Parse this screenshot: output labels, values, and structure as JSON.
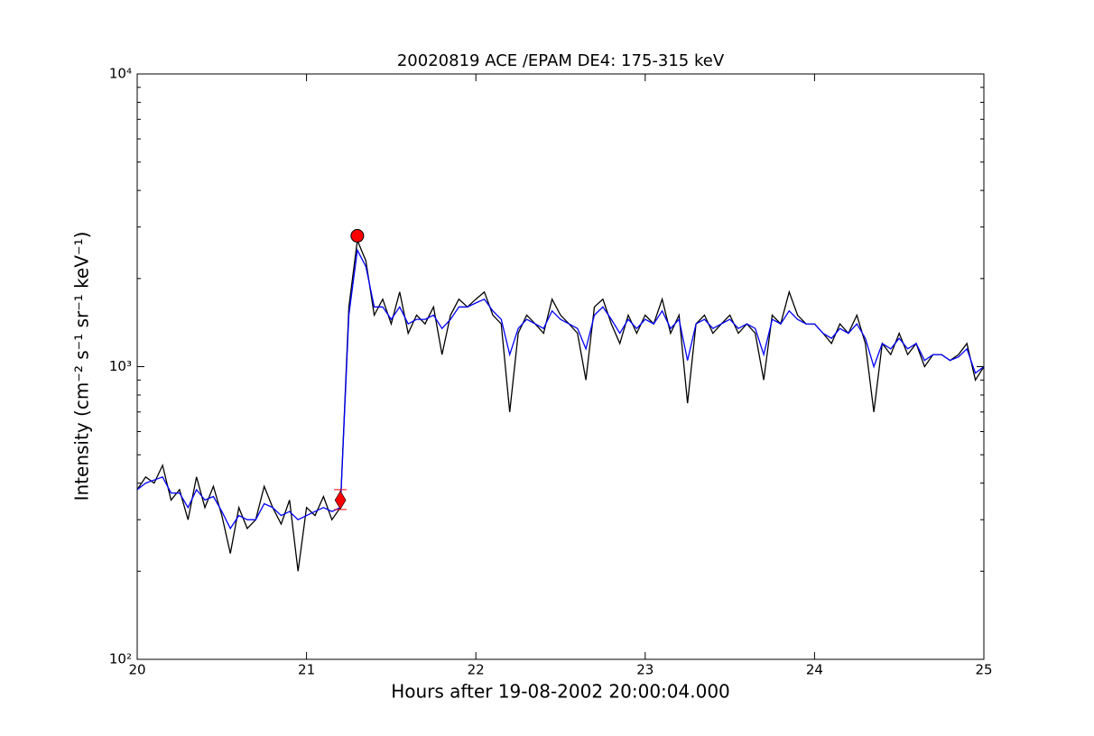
{
  "chart_data": {
    "type": "line",
    "title": "20020819 ACE /EPAM DE4: 175-315 keV",
    "xlabel": "Hours after 19-08-2002 20:00:04.000",
    "ylabel": "Intensity (cm⁻² s⁻¹ sr⁻¹ keV⁻¹)",
    "xlim": [
      20,
      25
    ],
    "ylim": [
      100,
      10000
    ],
    "yscale": "log",
    "xticks": [
      20,
      21,
      22,
      23,
      24,
      25
    ],
    "yticks": [
      {
        "value": 100,
        "label": "10²"
      },
      {
        "value": 1000,
        "label": "10³"
      },
      {
        "value": 10000,
        "label": "10⁴"
      }
    ],
    "yminorticks": [
      200,
      300,
      400,
      500,
      600,
      700,
      800,
      900,
      2000,
      3000,
      4000,
      5000,
      6000,
      7000,
      8000,
      9000
    ],
    "grid": false,
    "x": [
      20.0,
      20.05,
      20.1,
      20.15,
      20.2,
      20.25,
      20.3,
      20.35,
      20.4,
      20.45,
      20.5,
      20.55,
      20.6,
      20.65,
      20.7,
      20.75,
      20.8,
      20.85,
      20.9,
      20.95,
      21.0,
      21.05,
      21.1,
      21.15,
      21.2,
      21.25,
      21.3,
      21.35,
      21.4,
      21.45,
      21.5,
      21.55,
      21.6,
      21.65,
      21.7,
      21.75,
      21.8,
      21.85,
      21.9,
      21.95,
      22.0,
      22.05,
      22.1,
      22.15,
      22.2,
      22.25,
      22.3,
      22.35,
      22.4,
      22.45,
      22.5,
      22.55,
      22.6,
      22.65,
      22.7,
      22.75,
      22.8,
      22.85,
      22.9,
      22.95,
      23.0,
      23.05,
      23.1,
      23.15,
      23.2,
      23.25,
      23.3,
      23.35,
      23.4,
      23.45,
      23.5,
      23.55,
      23.6,
      23.65,
      23.7,
      23.75,
      23.8,
      23.85,
      23.9,
      23.95,
      24.0,
      24.05,
      24.1,
      24.15,
      24.2,
      24.25,
      24.3,
      24.35,
      24.4,
      24.45,
      24.5,
      24.55,
      24.6,
      24.65,
      24.7,
      24.75,
      24.8,
      24.85,
      24.9,
      24.95,
      25.0
    ],
    "series": [
      {
        "color": "#000000",
        "values": [
          380,
          420,
          400,
          460,
          350,
          380,
          300,
          420,
          330,
          390,
          310,
          230,
          330,
          280,
          300,
          390,
          330,
          290,
          350,
          200,
          330,
          310,
          360,
          300,
          330,
          1600,
          2700,
          2300,
          1500,
          1700,
          1400,
          1800,
          1300,
          1500,
          1400,
          1600,
          1100,
          1500,
          1700,
          1600,
          1700,
          1800,
          1500,
          1400,
          700,
          1300,
          1500,
          1400,
          1300,
          1700,
          1500,
          1400,
          1300,
          900,
          1600,
          1700,
          1400,
          1200,
          1500,
          1300,
          1500,
          1400,
          1700,
          1300,
          1500,
          750,
          1400,
          1500,
          1300,
          1400,
          1500,
          1300,
          1400,
          1300,
          900,
          1500,
          1400,
          1800,
          1500,
          1400,
          1400,
          1300,
          1200,
          1400,
          1300,
          1500,
          1200,
          700,
          1200,
          1100,
          1300,
          1100,
          1200,
          1000,
          1100,
          1100,
          1050,
          1100,
          1200,
          900,
          1000
        ]
      },
      {
        "color": "#0000ff",
        "values": [
          380,
          400,
          410,
          420,
          370,
          370,
          330,
          380,
          350,
          360,
          320,
          280,
          310,
          300,
          300,
          340,
          330,
          310,
          320,
          300,
          310,
          320,
          330,
          320,
          330,
          1500,
          2500,
          2200,
          1600,
          1600,
          1450,
          1600,
          1400,
          1450,
          1450,
          1500,
          1350,
          1450,
          1600,
          1600,
          1650,
          1700,
          1550,
          1450,
          1100,
          1350,
          1450,
          1400,
          1350,
          1550,
          1450,
          1400,
          1350,
          1150,
          1500,
          1600,
          1450,
          1300,
          1450,
          1350,
          1450,
          1400,
          1550,
          1350,
          1450,
          1050,
          1400,
          1450,
          1350,
          1400,
          1450,
          1350,
          1400,
          1350,
          1100,
          1450,
          1400,
          1550,
          1450,
          1400,
          1400,
          1300,
          1250,
          1350,
          1300,
          1400,
          1250,
          1000,
          1200,
          1150,
          1250,
          1150,
          1200,
          1050,
          1100,
          1100,
          1050,
          1080,
          1150,
          950,
          1000
        ]
      }
    ],
    "points": [
      {
        "x": 21.3,
        "y": 2800,
        "marker": "circle",
        "color": "#ff0000"
      },
      {
        "x": 21.2,
        "y": 350,
        "ylow": 325,
        "yhigh": 380,
        "marker": "diamond",
        "color": "#ff0000"
      }
    ]
  }
}
